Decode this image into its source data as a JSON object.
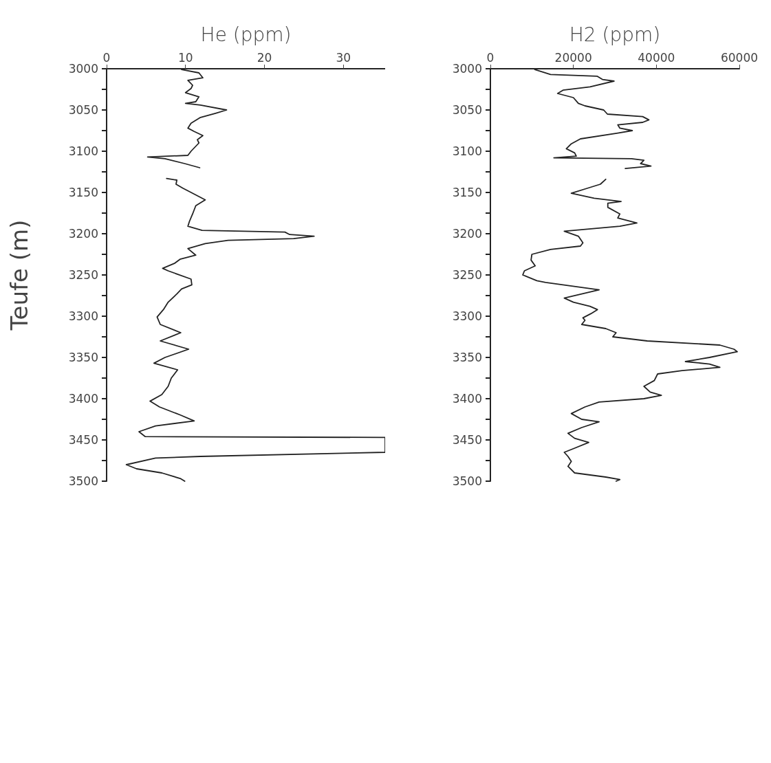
{
  "chart_data": [
    {
      "type": "line",
      "xlabel": "He (ppm)",
      "ylabel": "Teufe (m)",
      "xlim": [
        0,
        35.3
      ],
      "xticks": [
        0,
        10,
        20,
        30
      ],
      "ylim": [
        3500,
        3000
      ],
      "yticks": [
        3000,
        {
          "value": 3025,
          "label": null
        },
        3050,
        {
          "value": 3075,
          "label": null
        },
        3100,
        {
          "value": 3125,
          "label": null
        },
        3150,
        {
          "value": 3175,
          "label": null
        },
        3200,
        {
          "value": 3225,
          "label": null
        },
        3250,
        {
          "value": 3275,
          "label": null
        },
        3300,
        {
          "value": 3325,
          "label": null
        },
        3350,
        {
          "value": 3375,
          "label": null
        },
        3400,
        {
          "value": 3425,
          "label": null
        },
        3450,
        {
          "value": 3475,
          "label": null
        },
        3500
      ],
      "grid": false,
      "marker": "none",
      "line_style": "solid",
      "series": [
        {
          "color": "#222222",
          "x": [
            9.5,
            11.7,
            12.2,
            10.3,
            10.9,
            10.7,
            10.0,
            11.7,
            11.3,
            10.0,
            11.9,
            15.2,
            13.8,
            11.9,
            10.7,
            10.3,
            11.1,
            12.2,
            11.5,
            11.7,
            10.7,
            10.3,
            5.2,
            7.4,
            9.9,
            11.8,
            null,
            7.6,
            8.9,
            8.8,
            9.7,
            10.5,
            12.5,
            11.3,
            10.9,
            10.5,
            10.3,
            12.1,
            22.6,
            23.2,
            26.3,
            23.7,
            15.4,
            12.5,
            10.3,
            11.3,
            9.3,
            8.6,
            7.1,
            7.8,
            10.7,
            10.8,
            9.5,
            8.9,
            7.8,
            7.2,
            6.4,
            6.8,
            9.4,
            6.8,
            10.4,
            7.4,
            6.0,
            9.0,
            8.2,
            7.8,
            7.0,
            5.5,
            6.7,
            9.4,
            11.1,
            6.2,
            4.1,
            4.9,
            35.3,
            35.3,
            11.9,
            6.2,
            2.5,
            3.8,
            7.0,
            9.4,
            9.9
          ],
          "values": [
            3001,
            3005,
            3011,
            3014,
            3020,
            3024,
            3029,
            3034,
            3040,
            3042,
            3044,
            3050,
            3054,
            3059,
            3066,
            3072,
            3076,
            3081,
            3086,
            3090,
            3100,
            3105,
            3107,
            3109,
            3115,
            3120,
            null,
            3133,
            3135,
            3140,
            3145,
            3149,
            3159,
            3166,
            3176,
            3185,
            3191,
            3196,
            3198,
            3201,
            3203,
            3206,
            3208,
            3212,
            3218,
            3226,
            3231,
            3236,
            3242,
            3245,
            3255,
            3262,
            3267,
            3273,
            3283,
            3292,
            3301,
            3310,
            3320,
            3330,
            3340,
            3350,
            3357,
            3365,
            3375,
            3385,
            3395,
            3403,
            3410,
            3420,
            3427,
            3433,
            3440,
            3446,
            3447,
            3465,
            3470,
            3472,
            3480,
            3485,
            3490,
            3497,
            3500
          ]
        }
      ]
    },
    {
      "type": "line",
      "xlabel": "H2 (ppm)",
      "xlim": [
        0,
        60000
      ],
      "xticks": [
        0,
        20000,
        40000,
        60000
      ],
      "ylim": [
        3500,
        3000
      ],
      "yticks": [
        3000,
        {
          "value": 3025,
          "label": null
        },
        3050,
        {
          "value": 3075,
          "label": null
        },
        3100,
        {
          "value": 3125,
          "label": null
        },
        3150,
        {
          "value": 3175,
          "label": null
        },
        3200,
        {
          "value": 3225,
          "label": null
        },
        3250,
        {
          "value": 3275,
          "label": null
        },
        3300,
        {
          "value": 3325,
          "label": null
        },
        3350,
        {
          "value": 3375,
          "label": null
        },
        3400,
        {
          "value": 3425,
          "label": null
        },
        3450,
        {
          "value": 3475,
          "label": null
        },
        3500
      ],
      "grid": false,
      "marker": "none",
      "line_style": "solid",
      "series": [
        {
          "color": "#222222",
          "x": [
            10700,
            14500,
            25700,
            27000,
            29800,
            24000,
            17500,
            16200,
            20000,
            21200,
            22800,
            27300,
            28200,
            36700,
            38200,
            36700,
            30700,
            31200,
            34200,
            30700,
            21700,
            19500,
            18300,
            20300,
            20700,
            15300,
            34000,
            37000,
            36200,
            38700,
            32500,
            null,
            27800,
            26500,
            23300,
            19500,
            25000,
            31500,
            28300,
            28300,
            31200,
            30700,
            35300,
            31200,
            17800,
            21200,
            22300,
            21700,
            14500,
            10000,
            9800,
            10800,
            8200,
            7800,
            11200,
            13300,
            26200,
            17800,
            20000,
            24000,
            25800,
            24200,
            22300,
            22800,
            22000,
            27800,
            30300,
            29500,
            37800,
            55300,
            58700,
            59500,
            52800,
            47000,
            52800,
            55300,
            46200,
            40300,
            39500,
            37000,
            38500,
            41200,
            37000,
            26200,
            22800,
            19500,
            22000,
            26200,
            22000,
            18700,
            20300,
            23700,
            20300,
            17800,
            18700,
            19500,
            18700,
            20300,
            27800,
            31200,
            30300
          ],
          "values": [
            3001,
            3007,
            3009,
            3013,
            3015,
            3022,
            3026,
            3030,
            3035,
            3042,
            3045,
            3050,
            3055,
            3058,
            3062,
            3065,
            3068,
            3072,
            3075,
            3078,
            3085,
            3091,
            3097,
            3102,
            3106,
            3108,
            3109,
            3111,
            3115,
            3118,
            3121,
            null,
            3134,
            3140,
            3145,
            3151,
            3157,
            3161,
            3163,
            3168,
            3176,
            3181,
            3187,
            3191,
            3197,
            3203,
            3211,
            3215,
            3219,
            3225,
            3232,
            3239,
            3245,
            3250,
            3257,
            3259,
            3268,
            3278,
            3283,
            3288,
            3292,
            3297,
            3302,
            3305,
            3310,
            3315,
            3320,
            3325,
            3330,
            3335,
            3340,
            3343,
            3350,
            3355,
            3358,
            3362,
            3366,
            3370,
            3378,
            3385,
            3392,
            3396,
            3400,
            3404,
            3410,
            3418,
            3425,
            3428,
            3435,
            3442,
            3448,
            3453,
            3460,
            3465,
            3470,
            3476,
            3482,
            3490,
            3495,
            3498,
            3500
          ]
        }
      ]
    }
  ]
}
